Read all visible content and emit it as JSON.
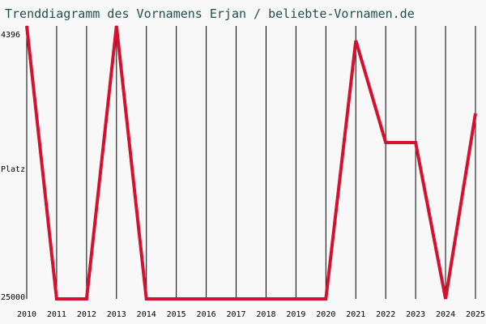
{
  "chart_data": {
    "type": "line",
    "title": "Trenddiagramm des Vornamens Erjan / beliebte-Vornamen.de",
    "ylabel": "Platz",
    "x": [
      "2010",
      "2011",
      "2012",
      "2013",
      "2014",
      "2015",
      "2016",
      "2017",
      "2018",
      "2019",
      "2020",
      "2021",
      "2022",
      "2023",
      "2024",
      "2025"
    ],
    "series": [
      {
        "values": [
          4396,
          25000,
          25000,
          4396,
          25000,
          25000,
          25000,
          25000,
          25000,
          25000,
          25000,
          5500,
          13200,
          13200,
          25000,
          11000
        ]
      }
    ],
    "yaxis": {
      "top_label": "4396",
      "bottom_label": "25000",
      "reversed": true,
      "ylim": [
        25000,
        4396
      ]
    },
    "grid": "vertical",
    "colors": {
      "line": "#d4112f",
      "grid": "#000000",
      "title": "#1f4f4a",
      "background": "#f8f8f8"
    }
  }
}
